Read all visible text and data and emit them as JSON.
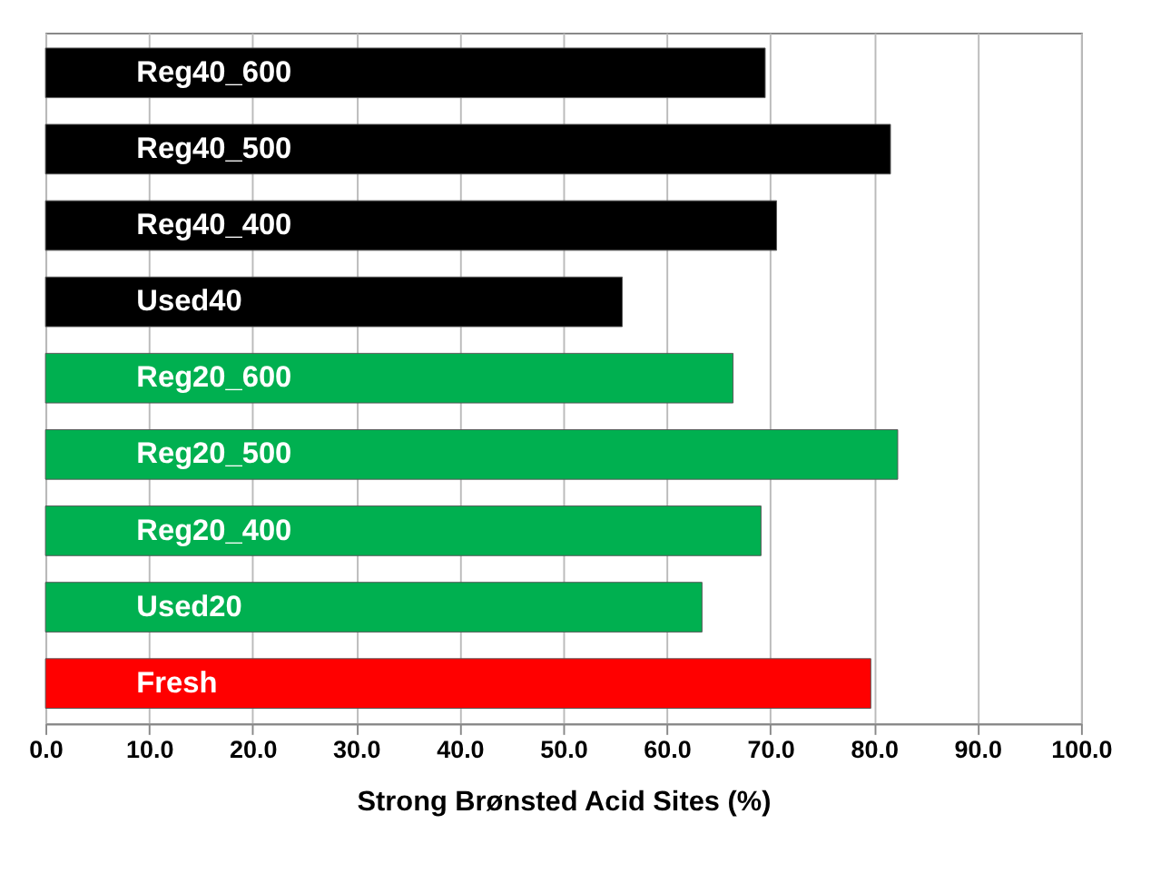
{
  "chart_data": {
    "type": "bar",
    "orientation": "horizontal",
    "xlabel": "Strong Brønsted Acid Sites (%)",
    "categories": [
      "Reg40_600",
      "Reg40_500",
      "Reg40_400",
      "Used40",
      "Reg20_600",
      "Reg20_500",
      "Reg20_400",
      "Used20",
      "Fresh"
    ],
    "values": [
      69.5,
      81.6,
      70.6,
      55.7,
      66.4,
      82.3,
      69.1,
      63.4,
      79.7
    ],
    "colors": [
      "#000000",
      "#000000",
      "#000000",
      "#000000",
      "#00b050",
      "#00b050",
      "#00b050",
      "#00b050",
      "#ff0000"
    ],
    "xlim": [
      0,
      100
    ],
    "xticks": [
      {
        "value": 0,
        "label": "0.0"
      },
      {
        "value": 10,
        "label": "10.0"
      },
      {
        "value": 20,
        "label": "20.0"
      },
      {
        "value": 30,
        "label": "30.0"
      },
      {
        "value": 40,
        "label": "40.0"
      },
      {
        "value": 50,
        "label": "50.0"
      },
      {
        "value": 60,
        "label": "60.0"
      },
      {
        "value": 70,
        "label": "70.0"
      },
      {
        "value": 80,
        "label": "80.0"
      },
      {
        "value": 90,
        "label": "90.0"
      },
      {
        "value": 100,
        "label": "100.0"
      }
    ],
    "grid": "x"
  }
}
